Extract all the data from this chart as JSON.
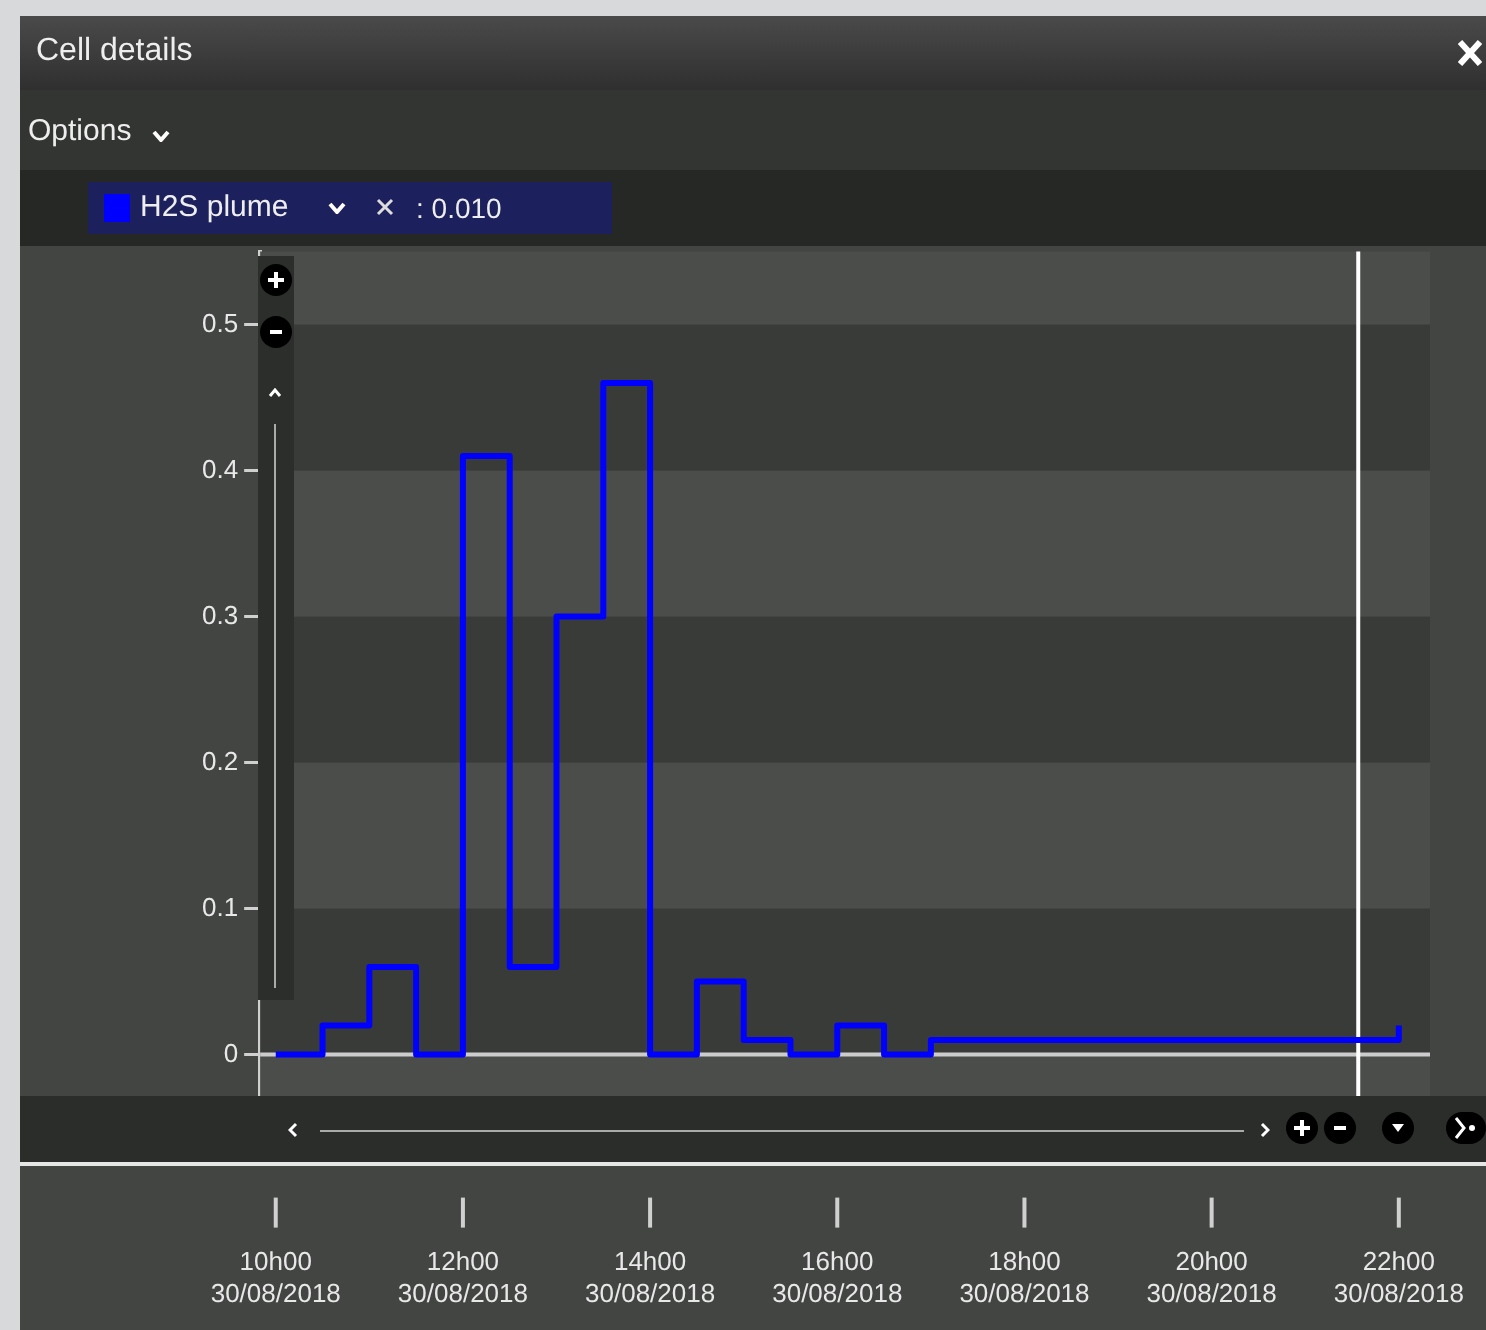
{
  "chart_data": {
    "type": "step",
    "title": "Cell details",
    "annotations": [
      "Options",
      ": 0.010"
    ],
    "x": [
      "2018-08-30T10:00",
      "2018-08-30T10:30",
      "2018-08-30T11:00",
      "2018-08-30T11:30",
      "2018-08-30T12:00",
      "2018-08-30T12:30",
      "2018-08-30T13:00",
      "2018-08-30T13:30",
      "2018-08-30T14:00",
      "2018-08-30T14:30",
      "2018-08-30T15:00",
      "2018-08-30T15:30",
      "2018-08-30T16:00",
      "2018-08-30T16:30",
      "2018-08-30T17:00",
      "2018-08-30T22:00"
    ],
    "series": [
      {
        "name": "H2S plume",
        "color": "#0000ff",
        "values": [
          0,
          0.02,
          0.06,
          0,
          0.41,
          0.06,
          0.3,
          0.46,
          0,
          0.05,
          0.01,
          0,
          0.02,
          0,
          0.01,
          0.02
        ]
      }
    ],
    "xlim": [
      "2018-08-30T09:50",
      "2018-08-30T22:20"
    ],
    "xticks": [
      {
        "value": "2018-08-30T10:00",
        "label": "10h00\n30/08/2018"
      },
      {
        "value": "2018-08-30T12:00",
        "label": "12h00\n30/08/2018"
      },
      {
        "value": "2018-08-30T14:00",
        "label": "14h00\n30/08/2018"
      },
      {
        "value": "2018-08-30T16:00",
        "label": "16h00\n30/08/2018"
      },
      {
        "value": "2018-08-30T18:00",
        "label": "18h00\n30/08/2018"
      },
      {
        "value": "2018-08-30T20:00",
        "label": "20h00\n30/08/2018"
      },
      {
        "value": "2018-08-30T22:00",
        "label": "22h00\n30/08/2018"
      }
    ],
    "ylim": [
      -0.05,
      0.55
    ],
    "yticks": [
      0,
      0.1,
      0.2,
      0.3,
      0.4,
      0.5
    ],
    "ref_lines": [
      {
        "axis": "y",
        "value": 0,
        "color": "#cccccc"
      },
      {
        "axis": "x",
        "value": "2018-08-30T21:34",
        "color": "#ffffff"
      }
    ],
    "legend": "top left",
    "marker": "none",
    "line_style": "solid"
  }
}
